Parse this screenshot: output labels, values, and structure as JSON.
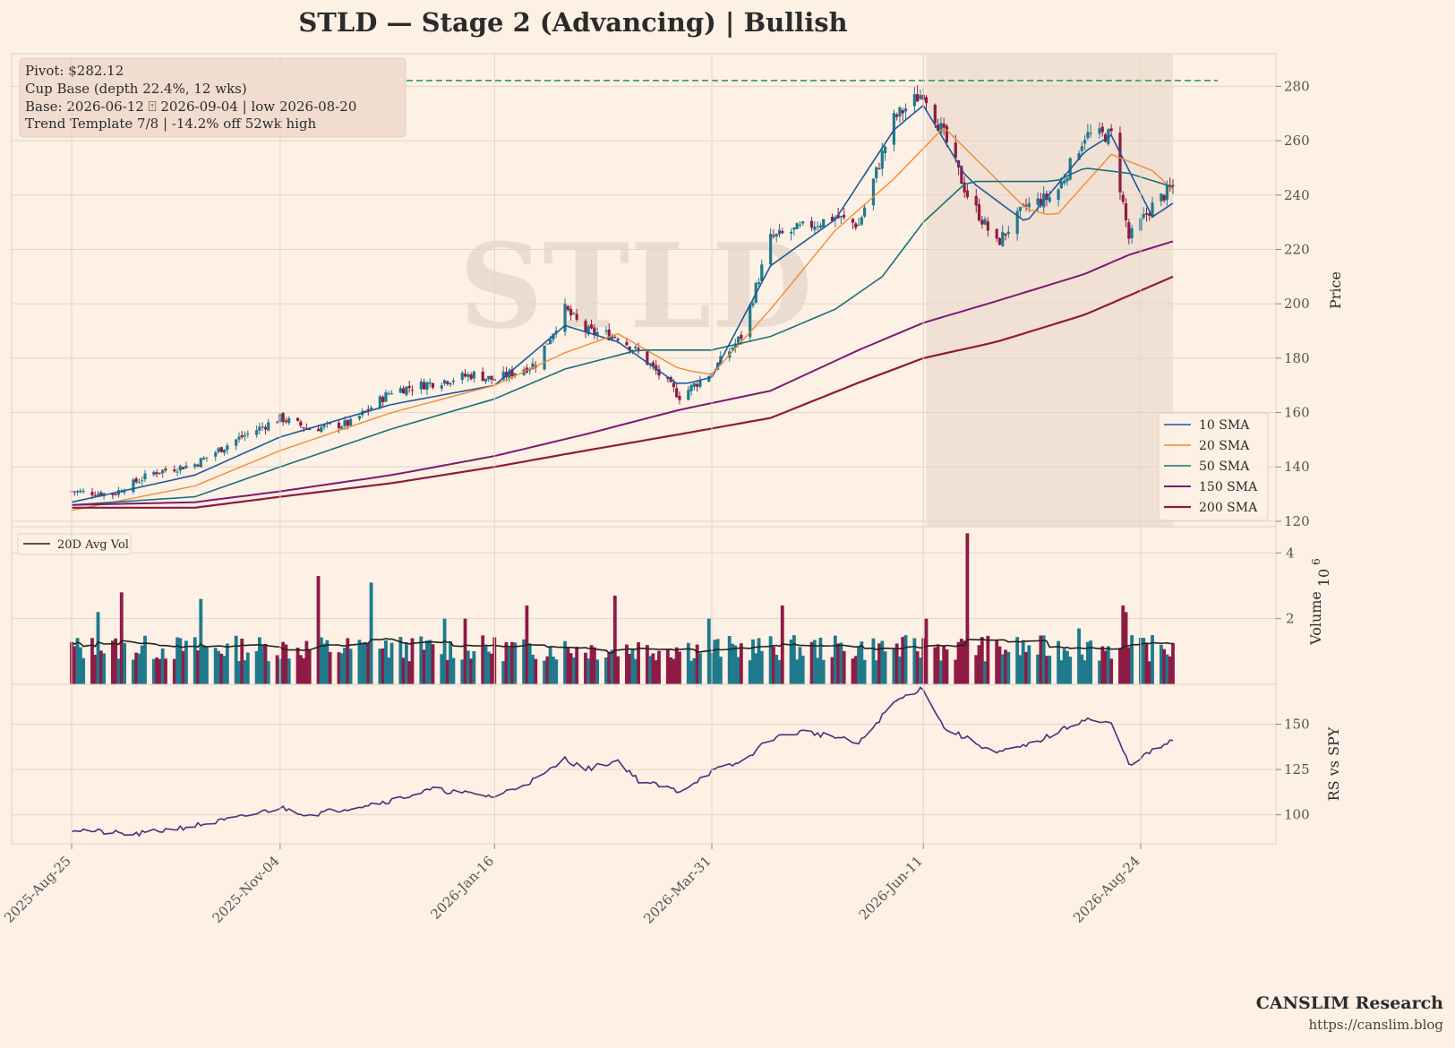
{
  "chart_data": {
    "type": "candlestick",
    "title": "STLD  —  Stage 2 (Advancing)  |  Bullish",
    "watermark": "STLD",
    "x_tick_labels": [
      "2025-Aug-25",
      "2025-Nov-04",
      "2026-Jan-16",
      "2026-Mar-31",
      "2026-Jun-11",
      "2026-Aug-24"
    ],
    "price_panel": {
      "ylabel": "Price",
      "ylim": [
        118,
        292
      ],
      "y_ticks": [
        120,
        140,
        160,
        180,
        200,
        220,
        240,
        260,
        280
      ],
      "pivot_value": 282.12,
      "pivot_color": "#2e9a4f",
      "info_lines": [
        "Pivot: $282.12",
        "Cup Base  (depth 22.4%, 12 wks)",
        "Base: 2026-06-12 ⍐ 2026-09-04  |  low 2026-08-20",
        "Trend Template 7/8  |  -14.2% off 52wk high"
      ],
      "base_shade": {
        "from": "2026-06-12",
        "to": "2026-09-04"
      },
      "up_color": "#1f7a8c",
      "down_color": "#8e1b45",
      "close_anchors": [
        [
          "2025-Aug-25",
          131
        ],
        [
          "2025-Sep-08",
          130
        ],
        [
          "2025-Sep-22",
          138
        ],
        [
          "2025-Oct-06",
          141
        ],
        [
          "2025-Oct-20",
          150
        ],
        [
          "2025-Nov-04",
          158
        ],
        [
          "2025-Nov-14",
          154
        ],
        [
          "2025-Nov-28",
          156
        ],
        [
          "2025-Dec-12",
          168
        ],
        [
          "2025-Dec-26",
          171
        ],
        [
          "2026-Jan-09",
          174
        ],
        [
          "2026-Jan-16",
          172
        ],
        [
          "2026-Jan-30",
          178
        ],
        [
          "2026-Feb-09",
          198
        ],
        [
          "2026-Feb-16",
          190
        ],
        [
          "2026-Feb-27",
          188
        ],
        [
          "2026-Mar-06",
          182
        ],
        [
          "2026-Mar-20",
          166
        ],
        [
          "2026-Mar-31",
          175
        ],
        [
          "2026-Apr-10",
          188
        ],
        [
          "2026-Apr-20",
          224
        ],
        [
          "2026-May-01",
          228
        ],
        [
          "2026-May-12",
          232
        ],
        [
          "2026-May-20",
          229
        ],
        [
          "2026-Jun-01",
          268
        ],
        [
          "2026-Jun-11",
          278
        ],
        [
          "2026-Jun-18",
          262
        ],
        [
          "2026-Jun-26",
          240
        ],
        [
          "2026-Jul-06",
          222
        ],
        [
          "2026-Jul-16",
          236
        ],
        [
          "2026-Jul-26",
          240
        ],
        [
          "2026-Aug-05",
          262
        ],
        [
          "2026-Aug-14",
          262
        ],
        [
          "2026-Aug-20",
          224
        ],
        [
          "2026-Aug-28",
          236
        ],
        [
          "2026-Sep-04",
          243
        ]
      ],
      "sma_series": [
        {
          "name": "10 SMA",
          "color": "#1b5a9a",
          "width": 1.6,
          "anchors": [
            [
              "2025-Aug-25",
              127
            ],
            [
              "2025-Oct-06",
              137
            ],
            [
              "2025-Nov-04",
              151
            ],
            [
              "2025-Dec-12",
              163
            ],
            [
              "2026-Jan-16",
              170
            ],
            [
              "2026-Feb-09",
              192
            ],
            [
              "2026-Feb-27",
              186
            ],
            [
              "2026-Mar-20",
              170
            ],
            [
              "2026-Mar-31",
              173
            ],
            [
              "2026-Apr-20",
              214
            ],
            [
              "2026-May-12",
              231
            ],
            [
              "2026-Jun-01",
              264
            ],
            [
              "2026-Jun-11",
              273
            ],
            [
              "2026-Jun-26",
              246
            ],
            [
              "2026-Jul-16",
              230
            ],
            [
              "2026-Aug-05",
              256
            ],
            [
              "2026-Aug-14",
              262
            ],
            [
              "2026-Aug-28",
              232
            ],
            [
              "2026-Sep-04",
              237
            ]
          ]
        },
        {
          "name": "20 SMA",
          "color": "#f08a36",
          "width": 1.4,
          "anchors": [
            [
              "2025-Aug-25",
              124
            ],
            [
              "2025-Oct-06",
              133
            ],
            [
              "2025-Nov-04",
              146
            ],
            [
              "2025-Dec-12",
              160
            ],
            [
              "2026-Jan-16",
              170
            ],
            [
              "2026-Feb-09",
              182
            ],
            [
              "2026-Feb-27",
              189
            ],
            [
              "2026-Mar-20",
              176
            ],
            [
              "2026-Mar-31",
              174
            ],
            [
              "2026-Apr-20",
              198
            ],
            [
              "2026-May-12",
              227
            ],
            [
              "2026-Jun-01",
              246
            ],
            [
              "2026-Jun-18",
              265
            ],
            [
              "2026-Jul-16",
              235
            ],
            [
              "2026-Jul-26",
              232
            ],
            [
              "2026-Aug-14",
              255
            ],
            [
              "2026-Aug-28",
              249
            ],
            [
              "2026-Sep-04",
              242
            ]
          ]
        },
        {
          "name": "50 SMA",
          "color": "#16727a",
          "width": 1.6,
          "anchors": [
            [
              "2025-Aug-25",
              126
            ],
            [
              "2025-Oct-06",
              129
            ],
            [
              "2025-Nov-04",
              140
            ],
            [
              "2025-Dec-12",
              154
            ],
            [
              "2026-Jan-16",
              165
            ],
            [
              "2026-Feb-09",
              176
            ],
            [
              "2026-Mar-06",
              183
            ],
            [
              "2026-Mar-31",
              183
            ],
            [
              "2026-Apr-20",
              188
            ],
            [
              "2026-May-12",
              198
            ],
            [
              "2026-May-28",
              210
            ],
            [
              "2026-Jun-11",
              230
            ],
            [
              "2026-Jun-26",
              245
            ],
            [
              "2026-Jul-26",
              245
            ],
            [
              "2026-Aug-05",
              250
            ],
            [
              "2026-Aug-20",
              248
            ],
            [
              "2026-Sep-04",
              243
            ]
          ]
        },
        {
          "name": "150 SMA",
          "color": "#7b1a72",
          "width": 2,
          "anchors": [
            [
              "2025-Aug-25",
              126
            ],
            [
              "2025-Oct-06",
              127
            ],
            [
              "2025-Nov-04",
              131
            ],
            [
              "2025-Dec-12",
              137
            ],
            [
              "2026-Jan-16",
              144
            ],
            [
              "2026-Feb-16",
              152
            ],
            [
              "2026-Mar-20",
              161
            ],
            [
              "2026-Apr-20",
              168
            ],
            [
              "2026-May-20",
              183
            ],
            [
              "2026-Jun-11",
              193
            ],
            [
              "2026-Jul-06",
              201
            ],
            [
              "2026-Aug-05",
              211
            ],
            [
              "2026-Aug-20",
              218
            ],
            [
              "2026-Sep-04",
              223
            ]
          ]
        },
        {
          "name": "200 SMA",
          "color": "#8e1b38",
          "width": 2.2,
          "anchors": [
            [
              "2025-Aug-25",
              125
            ],
            [
              "2025-Oct-06",
              125
            ],
            [
              "2025-Nov-04",
              129
            ],
            [
              "2025-Dec-12",
              134
            ],
            [
              "2026-Jan-16",
              140
            ],
            [
              "2026-Feb-16",
              146
            ],
            [
              "2026-Mar-20",
              152
            ],
            [
              "2026-Apr-20",
              158
            ],
            [
              "2026-May-20",
              171
            ],
            [
              "2026-Jun-11",
              180
            ],
            [
              "2026-Jul-06",
              186
            ],
            [
              "2026-Aug-05",
              196
            ],
            [
              "2026-Aug-20",
              203
            ],
            [
              "2026-Sep-04",
              210
            ]
          ]
        }
      ]
    },
    "volume_panel": {
      "ylabel": "Volume",
      "exponent_label": "6",
      "ylim": [
        0,
        4.8
      ],
      "y_ticks": [
        2,
        4
      ],
      "avg_legend": "20D Avg Vol",
      "spikes": [
        [
          6,
          2.2
        ],
        [
          11,
          2.8
        ],
        [
          29,
          2.6
        ],
        [
          54,
          3.3
        ],
        [
          67,
          3.1
        ],
        [
          82,
          2.0
        ],
        [
          87,
          2.0
        ],
        [
          100,
          2.4
        ],
        [
          120,
          2.7
        ],
        [
          140,
          2.0
        ],
        [
          157,
          2.4
        ],
        [
          189,
          2.0
        ],
        [
          198,
          4.6
        ],
        [
          222,
          1.7
        ],
        [
          232,
          2.4
        ],
        [
          233,
          2.2
        ]
      ]
    },
    "rs_panel": {
      "ylabel": "RS vs SPY",
      "ylim": [
        84,
        172
      ],
      "y_ticks": [
        100,
        125,
        150
      ],
      "line_color": "#4a2f7a",
      "anchors": [
        [
          "2025-Aug-25",
          92
        ],
        [
          "2025-Sep-15",
          89
        ],
        [
          "2025-Oct-06",
          94
        ],
        [
          "2025-Oct-20",
          98
        ],
        [
          "2025-Nov-04",
          104
        ],
        [
          "2025-Nov-14",
          100
        ],
        [
          "2025-Dec-12",
          108
        ],
        [
          "2025-Dec-26",
          114
        ],
        [
          "2026-Jan-16",
          110
        ],
        [
          "2026-Feb-01",
          121
        ],
        [
          "2026-Feb-09",
          131
        ],
        [
          "2026-Feb-16",
          125
        ],
        [
          "2026-Feb-27",
          130
        ],
        [
          "2026-Mar-06",
          119
        ],
        [
          "2026-Mar-20",
          113
        ],
        [
          "2026-Mar-31",
          124
        ],
        [
          "2026-Apr-10",
          129
        ],
        [
          "2026-Apr-20",
          142
        ],
        [
          "2026-May-01",
          146
        ],
        [
          "2026-May-12",
          143
        ],
        [
          "2026-May-20",
          139
        ],
        [
          "2026-Jun-01",
          162
        ],
        [
          "2026-Jun-08",
          168
        ],
        [
          "2026-Jun-11",
          170
        ],
        [
          "2026-Jun-18",
          148
        ],
        [
          "2026-Jun-26",
          142
        ],
        [
          "2026-Jul-06",
          134
        ],
        [
          "2026-Jul-16",
          138
        ],
        [
          "2026-Jul-26",
          145
        ],
        [
          "2026-Aug-05",
          153
        ],
        [
          "2026-Aug-14",
          150
        ],
        [
          "2026-Aug-20",
          128
        ],
        [
          "2026-Aug-28",
          135
        ],
        [
          "2026-Sep-04",
          141
        ]
      ]
    },
    "legend": {
      "placement": "lower-right",
      "entries": [
        "10 SMA",
        "20 SMA",
        "50 SMA",
        "150 SMA",
        "200 SMA"
      ]
    }
  },
  "footer": {
    "brand": "CANSLIM Research",
    "url": "https://canslim.blog"
  }
}
